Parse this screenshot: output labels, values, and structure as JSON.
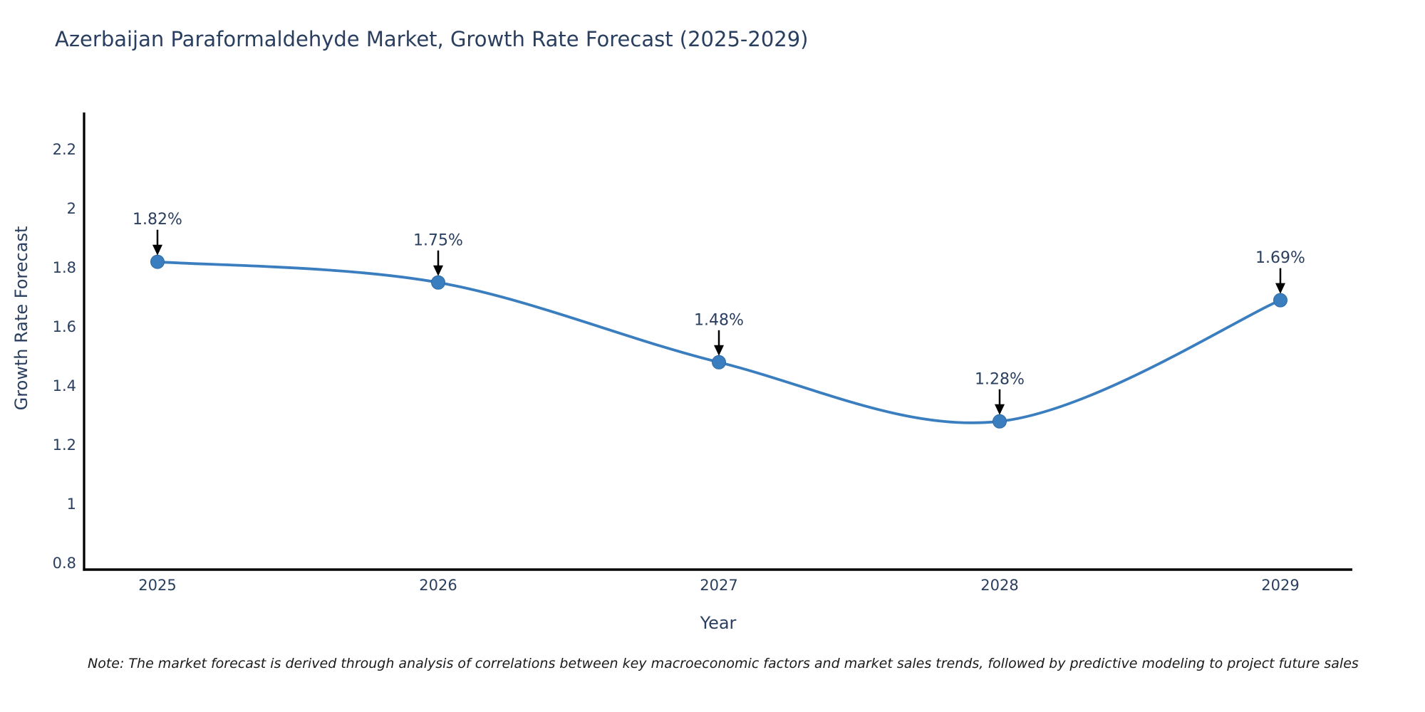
{
  "title": "Azerbaijan Paraformaldehyde Market, Growth Rate Forecast (2025-2029)",
  "note": "Note: The market forecast is derived through analysis of correlations between key macroeconomic factors and market sales trends, followed by predictive modeling to project future sales",
  "chart_data": {
    "type": "line",
    "title": "Azerbaijan Paraformaldehyde Market, Growth Rate Forecast (2025-2029)",
    "x": [
      2025,
      2026,
      2027,
      2028,
      2029
    ],
    "series": [
      {
        "name": "Growth Rate Forecast",
        "values": [
          1.82,
          1.75,
          1.48,
          1.28,
          1.69
        ]
      }
    ],
    "point_labels": [
      "1.82%",
      "1.75%",
      "1.48%",
      "1.28%",
      "1.69%"
    ],
    "xlabel": "Year",
    "ylabel": "Growth Rate Forecast",
    "ytick_labels": [
      "0.8",
      "1",
      "1.2",
      "1.4",
      "1.6",
      "1.8",
      "2",
      "2.2"
    ],
    "ylim": [
      0.78,
      2.33
    ],
    "line_shape": "spline",
    "grid": false,
    "legend": false,
    "annotation_arrows": true
  },
  "colors": {
    "line": "#3a7ebf",
    "marker": "#3a7ebf",
    "marker_edge": "#2f6ba3",
    "axis": "#000000",
    "arrow": "#000000",
    "text": "#2a3f5f",
    "note_text": "#1a1a1a",
    "background": "#ffffff"
  }
}
